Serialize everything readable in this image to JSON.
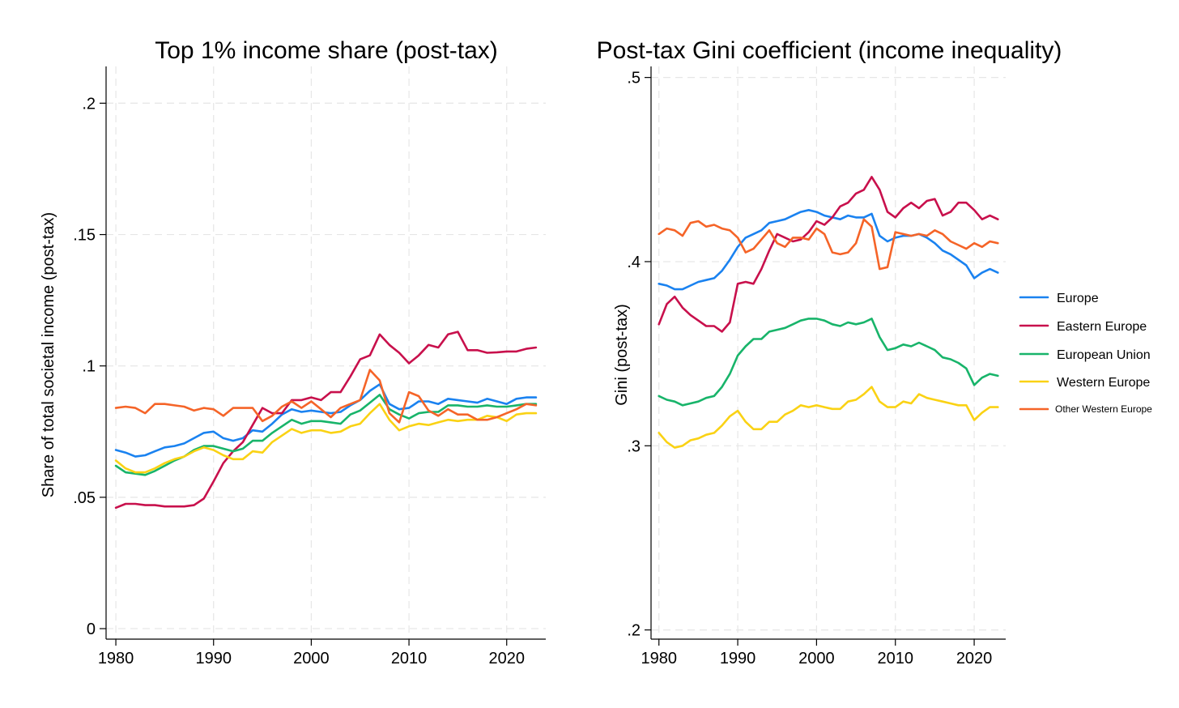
{
  "colors": {
    "Europe": "#1a82f0",
    "Eastern Europe": "#c8104c",
    "European Union": "#18b46a",
    "Western Europe": "#fad214",
    "Other Western Europe": "#f56428"
  },
  "legend": [
    "Europe",
    "Eastern Europe",
    "European Union",
    "Western Europe",
    "Other Western Europe"
  ],
  "chart_data": [
    {
      "type": "line",
      "title": "Top 1% income share (post-tax)",
      "xlabel": "",
      "ylabel": "Share of total societal income (post-tax)",
      "xlim": [
        1979,
        2024
      ],
      "ylim": [
        -0.004,
        0.214
      ],
      "xticks": [
        1980,
        1990,
        2000,
        2010,
        2020
      ],
      "xtick_labels": [
        "1980",
        "1990",
        "2000",
        "2010",
        "2020"
      ],
      "yticks": [
        0,
        0.05,
        0.1,
        0.15,
        0.2
      ],
      "ytick_labels": [
        "0",
        ".05",
        ".1",
        ".15",
        ".2"
      ],
      "x": [
        1980,
        1981,
        1982,
        1983,
        1984,
        1985,
        1986,
        1987,
        1988,
        1989,
        1990,
        1991,
        1992,
        1993,
        1994,
        1995,
        1996,
        1997,
        1998,
        1999,
        2000,
        2001,
        2002,
        2003,
        2004,
        2005,
        2006,
        2007,
        2008,
        2009,
        2010,
        2011,
        2012,
        2013,
        2014,
        2015,
        2016,
        2017,
        2018,
        2019,
        2020,
        2021,
        2022,
        2023
      ],
      "series": [
        {
          "name": "Europe",
          "values": [
            0.068,
            0.067,
            0.0655,
            0.066,
            0.0675,
            0.069,
            0.0695,
            0.0705,
            0.0725,
            0.0745,
            0.075,
            0.0725,
            0.0715,
            0.0725,
            0.0755,
            0.075,
            0.078,
            0.0815,
            0.0835,
            0.0825,
            0.083,
            0.0825,
            0.082,
            0.0825,
            0.085,
            0.087,
            0.0905,
            0.093,
            0.0855,
            0.0835,
            0.084,
            0.0865,
            0.0865,
            0.0855,
            0.0875,
            0.087,
            0.0865,
            0.086,
            0.0875,
            0.0865,
            0.0855,
            0.0875,
            0.088,
            0.088
          ]
        },
        {
          "name": "Eastern Europe",
          "values": [
            0.046,
            0.0475,
            0.0475,
            0.047,
            0.047,
            0.0465,
            0.0465,
            0.0465,
            0.047,
            0.0495,
            0.056,
            0.063,
            0.0675,
            0.071,
            0.0775,
            0.084,
            0.082,
            0.082,
            0.087,
            0.087,
            0.088,
            0.087,
            0.09,
            0.09,
            0.096,
            0.1025,
            0.104,
            0.112,
            0.108,
            0.105,
            0.101,
            0.104,
            0.108,
            0.107,
            0.112,
            0.113,
            0.106,
            0.106,
            0.105,
            0.1052,
            0.1055,
            0.1055,
            0.1065,
            0.107
          ]
        },
        {
          "name": "European Union",
          "values": [
            0.062,
            0.0595,
            0.059,
            0.0585,
            0.06,
            0.062,
            0.064,
            0.0655,
            0.068,
            0.0695,
            0.0695,
            0.0685,
            0.0675,
            0.0685,
            0.0715,
            0.0715,
            0.0745,
            0.077,
            0.0795,
            0.078,
            0.079,
            0.079,
            0.0785,
            0.078,
            0.0815,
            0.083,
            0.086,
            0.089,
            0.0835,
            0.0815,
            0.08,
            0.082,
            0.0825,
            0.0825,
            0.085,
            0.085,
            0.0845,
            0.0845,
            0.085,
            0.0845,
            0.0845,
            0.085,
            0.0855,
            0.0855
          ]
        },
        {
          "name": "Western Europe",
          "values": [
            0.064,
            0.061,
            0.0595,
            0.0595,
            0.061,
            0.063,
            0.0645,
            0.0655,
            0.0675,
            0.069,
            0.068,
            0.066,
            0.0645,
            0.0645,
            0.0675,
            0.067,
            0.071,
            0.0735,
            0.076,
            0.0745,
            0.0755,
            0.0755,
            0.0745,
            0.075,
            0.077,
            0.078,
            0.082,
            0.0855,
            0.0795,
            0.0755,
            0.077,
            0.078,
            0.0775,
            0.0785,
            0.0795,
            0.079,
            0.0795,
            0.0795,
            0.081,
            0.0805,
            0.079,
            0.0815,
            0.082,
            0.082
          ]
        },
        {
          "name": "Other Western Europe",
          "values": [
            0.084,
            0.0845,
            0.084,
            0.082,
            0.0855,
            0.0855,
            0.085,
            0.0845,
            0.083,
            0.084,
            0.0835,
            0.081,
            0.084,
            0.084,
            0.084,
            0.079,
            0.081,
            0.0845,
            0.0865,
            0.084,
            0.0865,
            0.0835,
            0.0805,
            0.084,
            0.0855,
            0.087,
            0.0985,
            0.0945,
            0.082,
            0.0785,
            0.09,
            0.0885,
            0.083,
            0.081,
            0.0835,
            0.0815,
            0.0815,
            0.0795,
            0.0795,
            0.0805,
            0.082,
            0.0835,
            0.0855,
            0.085
          ]
        }
      ]
    },
    {
      "type": "line",
      "title": "Post-tax Gini coefficient (income inequality)",
      "xlabel": "",
      "ylabel": "Gini (post-tax)",
      "xlim": [
        1979,
        2024
      ],
      "ylim": [
        0.195,
        0.506
      ],
      "xticks": [
        1980,
        1990,
        2000,
        2010,
        2020
      ],
      "xtick_labels": [
        "1980",
        "1990",
        "2000",
        "2010",
        "2020"
      ],
      "yticks": [
        0.2,
        0.3,
        0.4,
        0.5
      ],
      "ytick_labels": [
        ".2",
        ".3",
        ".4",
        ".5"
      ],
      "x": [
        1980,
        1981,
        1982,
        1983,
        1984,
        1985,
        1986,
        1987,
        1988,
        1989,
        1990,
        1991,
        1992,
        1993,
        1994,
        1995,
        1996,
        1997,
        1998,
        1999,
        2000,
        2001,
        2002,
        2003,
        2004,
        2005,
        2006,
        2007,
        2008,
        2009,
        2010,
        2011,
        2012,
        2013,
        2014,
        2015,
        2016,
        2017,
        2018,
        2019,
        2020,
        2021,
        2022,
        2023
      ],
      "series": [
        {
          "name": "Europe",
          "values": [
            0.388,
            0.387,
            0.385,
            0.385,
            0.387,
            0.389,
            0.39,
            0.391,
            0.395,
            0.401,
            0.408,
            0.413,
            0.415,
            0.417,
            0.421,
            0.422,
            0.423,
            0.425,
            0.427,
            0.428,
            0.427,
            0.425,
            0.424,
            0.423,
            0.425,
            0.424,
            0.424,
            0.426,
            0.414,
            0.411,
            0.413,
            0.414,
            0.414,
            0.415,
            0.413,
            0.41,
            0.406,
            0.404,
            0.401,
            0.398,
            0.391,
            0.394,
            0.396,
            0.394
          ]
        },
        {
          "name": "Eastern Europe",
          "values": [
            0.366,
            0.377,
            0.381,
            0.375,
            0.371,
            0.368,
            0.365,
            0.365,
            0.362,
            0.367,
            0.388,
            0.389,
            0.388,
            0.396,
            0.406,
            0.415,
            0.413,
            0.411,
            0.412,
            0.416,
            0.422,
            0.42,
            0.424,
            0.43,
            0.432,
            0.437,
            0.439,
            0.446,
            0.439,
            0.427,
            0.424,
            0.429,
            0.432,
            0.429,
            0.433,
            0.434,
            0.425,
            0.427,
            0.432,
            0.432,
            0.428,
            0.423,
            0.425,
            0.423
          ]
        },
        {
          "name": "European Union",
          "values": [
            0.327,
            0.325,
            0.324,
            0.322,
            0.323,
            0.324,
            0.326,
            0.327,
            0.332,
            0.339,
            0.349,
            0.354,
            0.358,
            0.358,
            0.362,
            0.363,
            0.364,
            0.366,
            0.368,
            0.369,
            0.369,
            0.368,
            0.366,
            0.365,
            0.367,
            0.366,
            0.367,
            0.369,
            0.359,
            0.352,
            0.353,
            0.355,
            0.354,
            0.356,
            0.354,
            0.352,
            0.348,
            0.347,
            0.345,
            0.342,
            0.333,
            0.337,
            0.339,
            0.338
          ]
        },
        {
          "name": "Western Europe",
          "values": [
            0.307,
            0.302,
            0.299,
            0.3,
            0.303,
            0.304,
            0.306,
            0.307,
            0.311,
            0.316,
            0.319,
            0.313,
            0.309,
            0.309,
            0.313,
            0.313,
            0.317,
            0.319,
            0.322,
            0.321,
            0.322,
            0.321,
            0.32,
            0.32,
            0.324,
            0.325,
            0.328,
            0.332,
            0.324,
            0.321,
            0.321,
            0.324,
            0.323,
            0.328,
            0.326,
            0.325,
            0.324,
            0.323,
            0.322,
            0.322,
            0.314,
            0.318,
            0.321,
            0.321
          ]
        },
        {
          "name": "Other Western Europe",
          "values": [
            0.415,
            0.418,
            0.417,
            0.414,
            0.421,
            0.422,
            0.419,
            0.42,
            0.418,
            0.417,
            0.413,
            0.405,
            0.407,
            0.412,
            0.417,
            0.41,
            0.408,
            0.413,
            0.413,
            0.412,
            0.418,
            0.415,
            0.405,
            0.404,
            0.405,
            0.41,
            0.423,
            0.419,
            0.396,
            0.397,
            0.416,
            0.415,
            0.414,
            0.415,
            0.414,
            0.417,
            0.415,
            0.411,
            0.409,
            0.407,
            0.41,
            0.408,
            0.411,
            0.41
          ]
        }
      ]
    }
  ]
}
